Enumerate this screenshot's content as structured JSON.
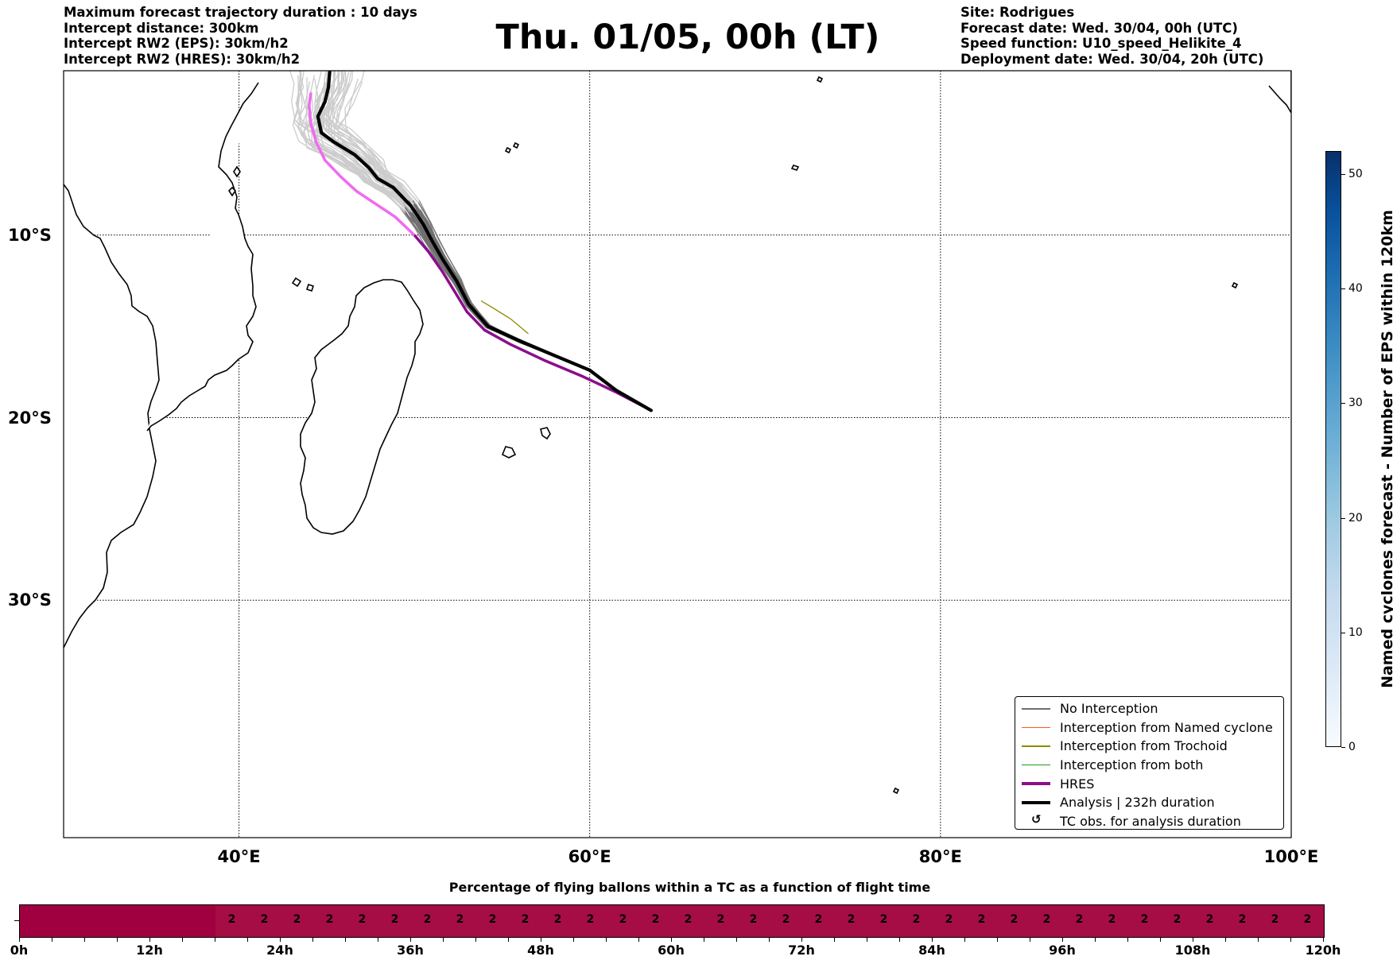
{
  "header": {
    "left": [
      "Maximum forecast trajectory duration : 10 days",
      "Intercept distance: 300km",
      "Intercept RW2 (EPS):  30km/h2",
      "Intercept RW2 (HRES): 30km/h2"
    ],
    "title": "Thu. 01/05, 00h (LT)",
    "right": [
      "Site: Rodrigues",
      "Forecast date: Wed. 30/04, 00h (UTC)",
      "Speed function: U10_speed_Helikite_4",
      "Deployment date: Wed. 30/04, 20h (UTC)"
    ]
  },
  "map": {
    "lon_range": [
      30,
      100
    ],
    "lat_range": [
      -43,
      -1
    ],
    "lon_ticks": [
      {
        "value": 40,
        "label": "40°E"
      },
      {
        "value": 60,
        "label": "60°E"
      },
      {
        "value": 80,
        "label": "80°E"
      },
      {
        "value": 100,
        "label": "100°E"
      }
    ],
    "lat_ticks": [
      {
        "value": -10,
        "label": "10°S"
      },
      {
        "value": -20,
        "label": "20°S"
      },
      {
        "value": -30,
        "label": "30°S"
      }
    ],
    "gridlines": true,
    "colors": {
      "no_interception": "#6e6e6e",
      "early_segment": "#cccccc",
      "named_cyclone": "#ff5a1f",
      "trochoid": "#8b8b00",
      "both": "#1a9a1a",
      "hres": "#8c0e8c",
      "hres_early": "#f06af0",
      "analysis": "#000000"
    },
    "hres_track": [
      [
        63.5,
        -19.6
      ],
      [
        61.5,
        -18.6
      ],
      [
        59.5,
        -17.7
      ],
      [
        57.5,
        -16.9
      ],
      [
        55.5,
        -16.0
      ],
      [
        54.0,
        -15.2
      ],
      [
        53.0,
        -14.2
      ],
      [
        52.3,
        -13.1
      ],
      [
        51.6,
        -12.0
      ],
      [
        50.8,
        -10.9
      ],
      [
        50.0,
        -10.0
      ],
      [
        48.9,
        -9.0
      ],
      [
        47.8,
        -8.3
      ],
      [
        46.7,
        -7.6
      ],
      [
        45.8,
        -6.8
      ],
      [
        44.9,
        -5.9
      ],
      [
        44.4,
        -4.9
      ],
      [
        44.1,
        -3.9
      ],
      [
        44.0,
        -2.9
      ],
      [
        44.1,
        -2.2
      ]
    ],
    "analysis_track": [
      [
        63.5,
        -19.6
      ],
      [
        61.5,
        -18.5
      ],
      [
        60.0,
        -17.4
      ],
      [
        58.0,
        -16.6
      ],
      [
        56.0,
        -15.8
      ],
      [
        54.2,
        -15.0
      ],
      [
        53.1,
        -13.8
      ],
      [
        52.4,
        -12.5
      ],
      [
        51.6,
        -11.3
      ],
      [
        51.0,
        -10.3
      ],
      [
        50.5,
        -9.4
      ],
      [
        49.8,
        -8.4
      ],
      [
        48.8,
        -7.4
      ],
      [
        47.9,
        -6.9
      ],
      [
        47.4,
        -6.3
      ],
      [
        46.6,
        -5.6
      ],
      [
        45.4,
        -4.9
      ],
      [
        44.7,
        -4.4
      ],
      [
        44.5,
        -3.5
      ],
      [
        44.9,
        -2.7
      ],
      [
        45.1,
        -1.9
      ],
      [
        45.2,
        -0.7
      ]
    ],
    "legend": [
      {
        "label": "No Interception",
        "style": "thin",
        "color": "#6e6e6e"
      },
      {
        "label": "Interception from Named cyclone",
        "style": "thin",
        "color": "#ff5a1f"
      },
      {
        "label": "Interception from Trochoid",
        "style": "thin",
        "color": "#8b8b00"
      },
      {
        "label": "Interception from both",
        "style": "thin",
        "color": "#1a9a1a"
      },
      {
        "label": "HRES",
        "style": "thick",
        "color": "#8c0e8c"
      },
      {
        "label": "Analysis | 232h duration",
        "style": "thick",
        "color": "#000000"
      },
      {
        "label": "TC obs. for analysis duration",
        "style": "glyph",
        "glyph": "↺"
      }
    ]
  },
  "colorbar": {
    "label": "Named cyclones forecast - Number of EPS within 120km",
    "range": [
      0,
      52
    ],
    "ticks": [
      0,
      10,
      20,
      30,
      40,
      50
    ],
    "colormap": "Blues"
  },
  "percentage_bar": {
    "title": "Percentage of flying ballons within a TC as a function of flight time",
    "x_range_hours": [
      0,
      120
    ],
    "major_ticks": [
      {
        "value": 0,
        "label": "0h"
      },
      {
        "value": 12,
        "label": "12h"
      },
      {
        "value": 24,
        "label": "24h"
      },
      {
        "value": 36,
        "label": "36h"
      },
      {
        "value": 48,
        "label": "48h"
      },
      {
        "value": 60,
        "label": "60h"
      },
      {
        "value": 72,
        "label": "72h"
      },
      {
        "value": 84,
        "label": "84h"
      },
      {
        "value": 96,
        "label": "96h"
      },
      {
        "value": 108,
        "label": "108h"
      },
      {
        "value": 120,
        "label": "120h"
      }
    ],
    "minor_step_hours": 3,
    "first_labeled_hour": 18,
    "cell_step_hours": 3,
    "value": "2",
    "color_empty": "#a0003f",
    "color_value": "#a60d44"
  }
}
